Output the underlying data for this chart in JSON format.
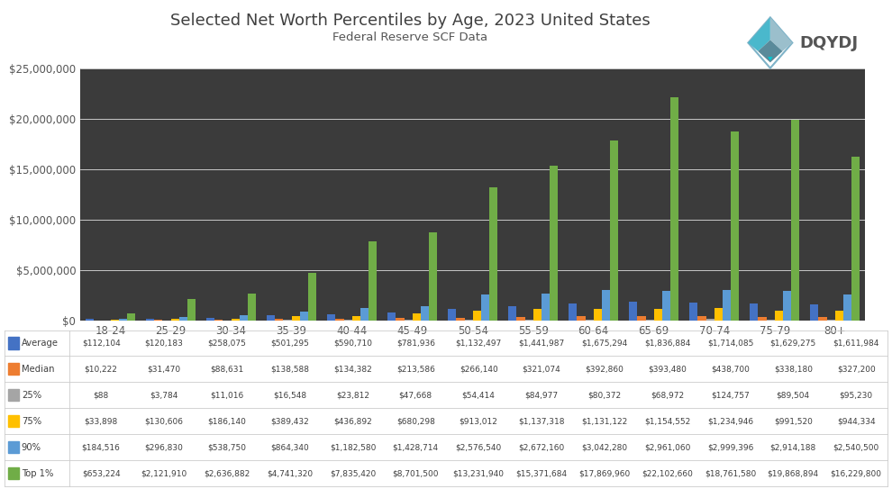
{
  "title": "Selected Net Worth Percentiles by Age, 2023 United States",
  "subtitle": "Federal Reserve SCF Data",
  "categories": [
    "18-24",
    "25-29",
    "30-34",
    "35-39",
    "40-44",
    "45-49",
    "50-54",
    "55-59",
    "60-64",
    "65-69",
    "70-74",
    "75-79",
    "80+"
  ],
  "series": {
    "Average": [
      112104,
      120183,
      258075,
      501295,
      590710,
      781936,
      1132497,
      1441987,
      1675294,
      1836884,
      1714085,
      1629275,
      1611984
    ],
    "Median": [
      10222,
      31470,
      88631,
      138588,
      134382,
      213586,
      266140,
      321074,
      392860,
      393480,
      438700,
      338180,
      327200
    ],
    "25": [
      88,
      3784,
      11016,
      16548,
      23812,
      47668,
      54414,
      84977,
      80372,
      68972,
      124757,
      89504,
      95230
    ],
    "75": [
      33898,
      130606,
      186140,
      389432,
      436892,
      680298,
      913012,
      1137318,
      1131122,
      1154552,
      1234946,
      991520,
      944334
    ],
    "90": [
      184516,
      296830,
      538750,
      864340,
      1182580,
      1428714,
      2576540,
      2672160,
      3042280,
      2961060,
      2999396,
      2914188,
      2540500
    ],
    "Top1": [
      653224,
      2121910,
      2636882,
      4741320,
      7835420,
      8701500,
      13231940,
      15371684,
      17869960,
      22102660,
      18761580,
      19868894,
      16229800
    ]
  },
  "colors": {
    "Average": "#4472c4",
    "Median": "#ed7d31",
    "25": "#a5a5a5",
    "75": "#ffc000",
    "90": "#5b9bd5",
    "Top1": "#70ad47"
  },
  "bg_color": "#3b3b3b",
  "fig_bg_color": "#ffffff",
  "ylim": [
    0,
    25000000
  ],
  "yticks": [
    0,
    5000000,
    10000000,
    15000000,
    20000000,
    25000000
  ],
  "tick_color": "#555555",
  "title_color": "#404040",
  "subtitle_color": "#555555",
  "grid_color": "#ffffff",
  "legend_labels": [
    "Average",
    "Median",
    "25%",
    "75%",
    "90%",
    "Top 1%"
  ],
  "legend_keys": [
    "Average",
    "Median",
    "25",
    "75",
    "90",
    "Top1"
  ],
  "table_border_color": "#cccccc",
  "table_text_color": "#404040"
}
